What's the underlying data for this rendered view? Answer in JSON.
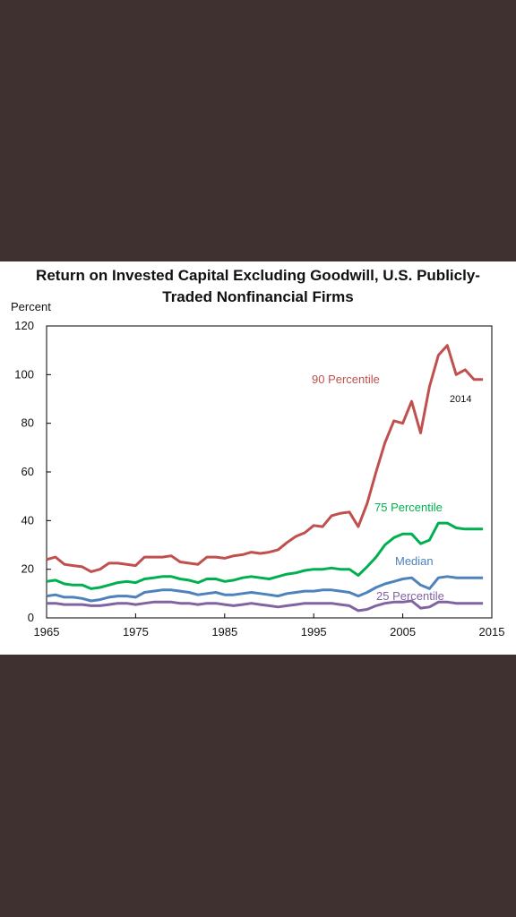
{
  "chart_data": {
    "type": "line",
    "title_line1": "Return on Invested Capital Excluding Goodwill, U.S. Publicly-",
    "title_line2": "Traded Nonfinancial Firms",
    "ylabel": "Percent",
    "xlabel": "",
    "ylim": [
      0,
      120
    ],
    "xlim": [
      1965,
      2015
    ],
    "yticks": [
      0,
      20,
      40,
      60,
      80,
      100,
      120
    ],
    "xticks": [
      1965,
      1975,
      1985,
      1995,
      2005,
      2015
    ],
    "grid": false,
    "annotation": "2014",
    "x": [
      1965,
      1966,
      1967,
      1968,
      1969,
      1970,
      1971,
      1972,
      1973,
      1974,
      1975,
      1976,
      1977,
      1978,
      1979,
      1980,
      1981,
      1982,
      1983,
      1984,
      1985,
      1986,
      1987,
      1988,
      1989,
      1990,
      1991,
      1992,
      1993,
      1994,
      1995,
      1996,
      1997,
      1998,
      1999,
      2000,
      2001,
      2002,
      2003,
      2004,
      2005,
      2006,
      2007,
      2008,
      2009,
      2010,
      2011,
      2012,
      2013,
      2014
    ],
    "series": [
      {
        "name": "90 Percentile",
        "color": "#c0504d",
        "values": [
          24,
          25,
          22,
          21.5,
          21,
          19,
          20,
          22.5,
          22.5,
          22,
          21.5,
          25,
          25,
          25,
          25.5,
          23,
          22.5,
          22,
          25,
          25,
          24.5,
          25.5,
          26,
          27,
          26.5,
          27,
          28,
          31,
          33.5,
          35,
          38,
          37.5,
          42,
          43,
          43.5,
          37.5,
          47,
          60,
          72,
          81,
          80,
          89,
          76,
          95,
          108,
          112,
          100,
          102,
          98,
          98
        ]
      },
      {
        "name": "75 Percentile",
        "color": "#00b050",
        "values": [
          15,
          15.5,
          14,
          13.5,
          13.5,
          12,
          12.5,
          13.5,
          14.5,
          15,
          14.5,
          16,
          16.5,
          17,
          17,
          16,
          15.5,
          14.5,
          16,
          16,
          15,
          15.5,
          16.5,
          17,
          16.5,
          16,
          17,
          18,
          18.5,
          19.5,
          20,
          20,
          20.5,
          20,
          20,
          17.5,
          21,
          25,
          30,
          33,
          34.5,
          34.5,
          30.5,
          32,
          39,
          39,
          37,
          36.5,
          36.5,
          36.5
        ]
      },
      {
        "name": "Median",
        "color": "#4f81bd",
        "values": [
          9,
          9.5,
          8.5,
          8.5,
          8,
          7,
          7.5,
          8.5,
          9,
          9,
          8.5,
          10.5,
          11,
          11.5,
          11.5,
          11,
          10.5,
          9.5,
          10,
          10.5,
          9.5,
          9.5,
          10,
          10.5,
          10,
          9.5,
          9,
          10,
          10.5,
          11,
          11,
          11.5,
          11.5,
          11,
          10.5,
          9,
          10.5,
          12.5,
          14,
          15,
          16,
          16.5,
          13.5,
          12,
          16.5,
          17,
          16.5,
          16.5,
          16.5,
          16.5
        ]
      },
      {
        "name": "25 Percentile",
        "color": "#8064a2",
        "values": [
          6,
          6,
          5.5,
          5.5,
          5.5,
          5,
          5,
          5.5,
          6,
          6,
          5.5,
          6,
          6.5,
          6.5,
          6.5,
          6,
          6,
          5.5,
          6,
          6,
          5.5,
          5,
          5.5,
          6,
          5.5,
          5,
          4.5,
          5,
          5.5,
          6,
          6,
          6,
          6,
          5.5,
          5,
          3,
          3.5,
          5,
          6,
          6.5,
          6.5,
          7,
          4,
          4.5,
          6.5,
          6.5,
          6,
          6,
          6,
          6
        ]
      }
    ]
  }
}
